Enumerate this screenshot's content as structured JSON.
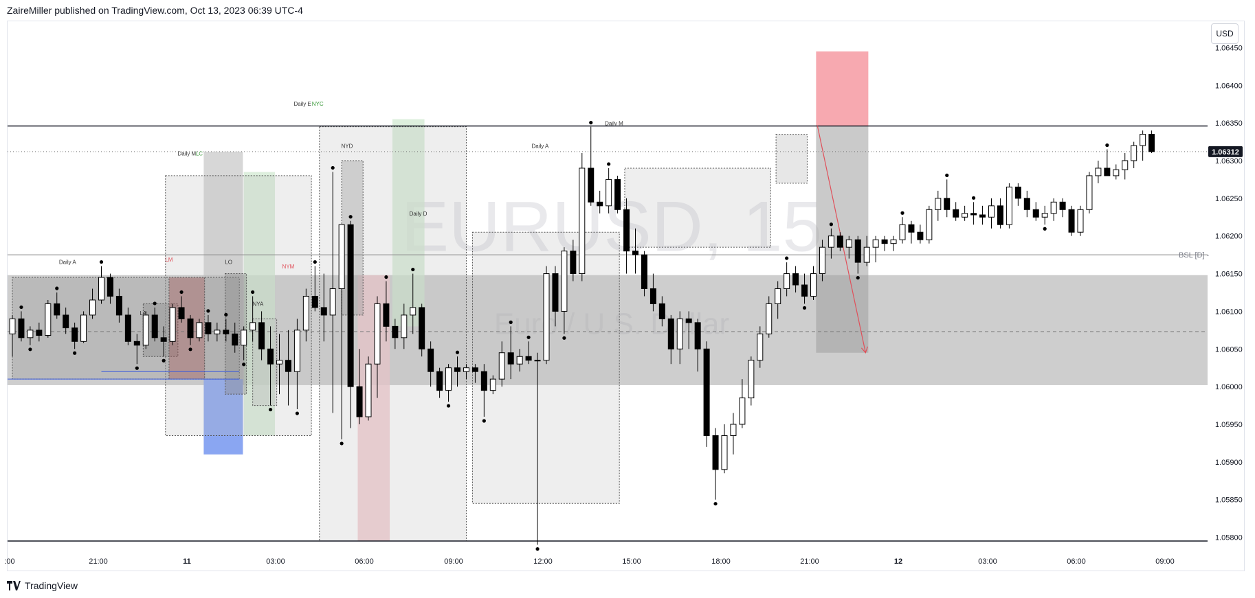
{
  "header": {
    "published": "ZaireMiller published on TradingView.com, Oct 13, 2023 06:39 UTC-4"
  },
  "footer": {
    "brand": "TradingView"
  },
  "price_scale": {
    "currency": "USD",
    "current_price": "1.06312"
  },
  "watermark": {
    "symbol": "EURUSD, 15",
    "description": "Euro / U.S. Dollar"
  },
  "colors": {
    "up": "#ffffff",
    "down": "#000000",
    "premium": "#f7a9b0",
    "discount": "#8aa6f2",
    "killzone_green": "#cfe8cf",
    "killzone_red": "#f1c7cc",
    "arrow": "#e0505a"
  },
  "chart_data": {
    "type": "candlestick",
    "symbol": "EURUSD",
    "timeframe": "15",
    "x_tick_labels": [
      ":00",
      "21:00",
      "11",
      "03:00",
      "06:00",
      "09:00",
      "12:00",
      "15:00",
      "18:00",
      "21:00",
      "12",
      "03:00",
      "06:00",
      "09:00"
    ],
    "y_tick_labels": [
      "1.06450",
      "1.06400",
      "1.06350",
      "1.06300",
      "1.06250",
      "1.06200",
      "1.06150",
      "1.06100",
      "1.06050",
      "1.06000",
      "1.05950",
      "1.05900",
      "1.05850",
      "1.05800"
    ],
    "ylim": [
      1.05775,
      1.06485
    ],
    "current_price": 1.06312,
    "levels": [
      {
        "price": 1.06346,
        "style": "solid",
        "label": ""
      },
      {
        "price": 1.06175,
        "style": "solid",
        "label": "BSL [D] -"
      },
      {
        "price": 1.05795,
        "style": "solid",
        "label": ""
      },
      {
        "price": 1.06312,
        "style": "dotted",
        "label": ""
      },
      {
        "price": 1.06073,
        "style": "dashed",
        "label": ""
      }
    ],
    "annotations": [
      {
        "text": "Daily A",
        "x": 6.2,
        "price": 1.06163
      },
      {
        "text": "LA",
        "x": 14.7,
        "price": 1.06095
      },
      {
        "text": "LM",
        "x": 17.6,
        "price": 1.06166
      },
      {
        "text": "Daily M",
        "x": 19.6,
        "price": 1.06307
      },
      {
        "text": "LC",
        "x": 21.0,
        "price": 1.06307
      },
      {
        "text": "LO",
        "x": 24.3,
        "price": 1.06163
      },
      {
        "text": "NYA",
        "x": 27.6,
        "price": 1.06107
      },
      {
        "text": "NYM",
        "x": 31.0,
        "price": 1.06157
      },
      {
        "text": "Daily E",
        "x": 32.6,
        "price": 1.06373
      },
      {
        "text": "NYC",
        "x": 34.3,
        "price": 1.06373
      },
      {
        "text": "NYD",
        "x": 37.6,
        "price": 1.06317
      },
      {
        "text": "Daily D",
        "x": 45.6,
        "price": 1.06227
      },
      {
        "text": "Daily A",
        "x": 59.3,
        "price": 1.06317
      },
      {
        "text": "Daily M",
        "x": 67.6,
        "price": 1.06347
      }
    ],
    "candles": [
      {
        "o": 1.0607,
        "h": 1.06095,
        "l": 1.0604,
        "c": 1.0609
      },
      {
        "o": 1.0609,
        "h": 1.061,
        "l": 1.0606,
        "c": 1.06065
      },
      {
        "o": 1.06065,
        "h": 1.0608,
        "l": 1.06055,
        "c": 1.06075
      },
      {
        "o": 1.06075,
        "h": 1.06085,
        "l": 1.0606,
        "c": 1.06068
      },
      {
        "o": 1.06068,
        "h": 1.06115,
        "l": 1.06065,
        "c": 1.0611
      },
      {
        "o": 1.0611,
        "h": 1.06125,
        "l": 1.0609,
        "c": 1.06095
      },
      {
        "o": 1.06095,
        "h": 1.06105,
        "l": 1.0607,
        "c": 1.06078
      },
      {
        "o": 1.06078,
        "h": 1.06085,
        "l": 1.0605,
        "c": 1.0606
      },
      {
        "o": 1.0606,
        "h": 1.061,
        "l": 1.06058,
        "c": 1.06095
      },
      {
        "o": 1.06095,
        "h": 1.0613,
        "l": 1.0609,
        "c": 1.06115
      },
      {
        "o": 1.06115,
        "h": 1.0616,
        "l": 1.0611,
        "c": 1.06145
      },
      {
        "o": 1.06145,
        "h": 1.0615,
        "l": 1.0611,
        "c": 1.0612
      },
      {
        "o": 1.0612,
        "h": 1.0613,
        "l": 1.06085,
        "c": 1.06095
      },
      {
        "o": 1.06095,
        "h": 1.06105,
        "l": 1.06055,
        "c": 1.0606
      },
      {
        "o": 1.0606,
        "h": 1.0607,
        "l": 1.0603,
        "c": 1.06055
      },
      {
        "o": 1.06055,
        "h": 1.061,
        "l": 1.0605,
        "c": 1.06095
      },
      {
        "o": 1.06095,
        "h": 1.06105,
        "l": 1.0606,
        "c": 1.06065
      },
      {
        "o": 1.06065,
        "h": 1.0608,
        "l": 1.0604,
        "c": 1.0606
      },
      {
        "o": 1.0606,
        "h": 1.0611,
        "l": 1.06055,
        "c": 1.06105
      },
      {
        "o": 1.06105,
        "h": 1.0612,
        "l": 1.06085,
        "c": 1.0609
      },
      {
        "o": 1.0609,
        "h": 1.06095,
        "l": 1.06055,
        "c": 1.06065
      },
      {
        "o": 1.06065,
        "h": 1.0609,
        "l": 1.0606,
        "c": 1.06085
      },
      {
        "o": 1.06085,
        "h": 1.06095,
        "l": 1.0606,
        "c": 1.0607
      },
      {
        "o": 1.0607,
        "h": 1.06085,
        "l": 1.0606,
        "c": 1.06075
      },
      {
        "o": 1.06075,
        "h": 1.0609,
        "l": 1.0606,
        "c": 1.0607
      },
      {
        "o": 1.0607,
        "h": 1.06085,
        "l": 1.06045,
        "c": 1.06055
      },
      {
        "o": 1.06055,
        "h": 1.0608,
        "l": 1.06035,
        "c": 1.06075
      },
      {
        "o": 1.06075,
        "h": 1.0612,
        "l": 1.0606,
        "c": 1.06085
      },
      {
        "o": 1.06085,
        "h": 1.061,
        "l": 1.06035,
        "c": 1.0605
      },
      {
        "o": 1.0605,
        "h": 1.0608,
        "l": 1.05975,
        "c": 1.0603
      },
      {
        "o": 1.0603,
        "h": 1.0607,
        "l": 1.0599,
        "c": 1.06035
      },
      {
        "o": 1.06035,
        "h": 1.06075,
        "l": 1.05975,
        "c": 1.0602
      },
      {
        "o": 1.0602,
        "h": 1.0609,
        "l": 1.0597,
        "c": 1.06075
      },
      {
        "o": 1.06075,
        "h": 1.0613,
        "l": 1.0606,
        "c": 1.0612
      },
      {
        "o": 1.0612,
        "h": 1.0616,
        "l": 1.061,
        "c": 1.06105
      },
      {
        "o": 1.06105,
        "h": 1.0615,
        "l": 1.0606,
        "c": 1.06095
      },
      {
        "o": 1.06095,
        "h": 1.06285,
        "l": 1.05965,
        "c": 1.0613
      },
      {
        "o": 1.0613,
        "h": 1.06215,
        "l": 1.0593,
        "c": 1.06215
      },
      {
        "o": 1.06215,
        "h": 1.0622,
        "l": 1.05945,
        "c": 1.06
      },
      {
        "o": 1.06,
        "h": 1.0605,
        "l": 1.0595,
        "c": 1.0596
      },
      {
        "o": 1.0596,
        "h": 1.0604,
        "l": 1.05955,
        "c": 1.0603
      },
      {
        "o": 1.0603,
        "h": 1.0612,
        "l": 1.05985,
        "c": 1.0611
      },
      {
        "o": 1.0611,
        "h": 1.0614,
        "l": 1.0606,
        "c": 1.0608
      },
      {
        "o": 1.0608,
        "h": 1.0609,
        "l": 1.0605,
        "c": 1.06065
      },
      {
        "o": 1.06065,
        "h": 1.0611,
        "l": 1.0605,
        "c": 1.06095
      },
      {
        "o": 1.06095,
        "h": 1.0615,
        "l": 1.0607,
        "c": 1.06105
      },
      {
        "o": 1.06105,
        "h": 1.0611,
        "l": 1.0604,
        "c": 1.0605
      },
      {
        "o": 1.0605,
        "h": 1.0606,
        "l": 1.06,
        "c": 1.0602
      },
      {
        "o": 1.0602,
        "h": 1.06025,
        "l": 1.05985,
        "c": 1.05995
      },
      {
        "o": 1.05995,
        "h": 1.0603,
        "l": 1.0598,
        "c": 1.06025
      },
      {
        "o": 1.06025,
        "h": 1.0604,
        "l": 1.06,
        "c": 1.0602
      },
      {
        "o": 1.0602,
        "h": 1.0603,
        "l": 1.0601,
        "c": 1.06025
      },
      {
        "o": 1.06025,
        "h": 1.0603,
        "l": 1.06005,
        "c": 1.0602
      },
      {
        "o": 1.0602,
        "h": 1.0603,
        "l": 1.0596,
        "c": 1.05995
      },
      {
        "o": 1.05995,
        "h": 1.06015,
        "l": 1.0599,
        "c": 1.0601
      },
      {
        "o": 1.0601,
        "h": 1.0606,
        "l": 1.06,
        "c": 1.06045
      },
      {
        "o": 1.06045,
        "h": 1.0608,
        "l": 1.0601,
        "c": 1.0603
      },
      {
        "o": 1.0603,
        "h": 1.0605,
        "l": 1.0602,
        "c": 1.0604
      },
      {
        "o": 1.0604,
        "h": 1.0606,
        "l": 1.0603,
        "c": 1.06035
      },
      {
        "o": 1.06035,
        "h": 1.06045,
        "l": 1.0579,
        "c": 1.06035
      },
      {
        "o": 1.06035,
        "h": 1.0616,
        "l": 1.0603,
        "c": 1.0615
      },
      {
        "o": 1.0615,
        "h": 1.0616,
        "l": 1.0608,
        "c": 1.061
      },
      {
        "o": 1.061,
        "h": 1.06185,
        "l": 1.0607,
        "c": 1.0618
      },
      {
        "o": 1.0618,
        "h": 1.06195,
        "l": 1.0614,
        "c": 1.0615
      },
      {
        "o": 1.0615,
        "h": 1.0631,
        "l": 1.0614,
        "c": 1.0629
      },
      {
        "o": 1.0629,
        "h": 1.06345,
        "l": 1.0624,
        "c": 1.06245
      },
      {
        "o": 1.06245,
        "h": 1.0626,
        "l": 1.0623,
        "c": 1.0624
      },
      {
        "o": 1.0624,
        "h": 1.0629,
        "l": 1.0623,
        "c": 1.06275
      },
      {
        "o": 1.06275,
        "h": 1.0628,
        "l": 1.0623,
        "c": 1.06235
      },
      {
        "o": 1.06235,
        "h": 1.0625,
        "l": 1.0615,
        "c": 1.0618
      },
      {
        "o": 1.0618,
        "h": 1.0621,
        "l": 1.0615,
        "c": 1.06175
      },
      {
        "o": 1.06175,
        "h": 1.0618,
        "l": 1.0612,
        "c": 1.0613
      },
      {
        "o": 1.0613,
        "h": 1.0615,
        "l": 1.061,
        "c": 1.0611
      },
      {
        "o": 1.0611,
        "h": 1.0612,
        "l": 1.0608,
        "c": 1.0609
      },
      {
        "o": 1.0609,
        "h": 1.06095,
        "l": 1.0603,
        "c": 1.0605
      },
      {
        "o": 1.0605,
        "h": 1.061,
        "l": 1.0603,
        "c": 1.0609
      },
      {
        "o": 1.0609,
        "h": 1.061,
        "l": 1.0605,
        "c": 1.06085
      },
      {
        "o": 1.06085,
        "h": 1.0609,
        "l": 1.0602,
        "c": 1.0605
      },
      {
        "o": 1.0605,
        "h": 1.0606,
        "l": 1.0592,
        "c": 1.05935
      },
      {
        "o": 1.05935,
        "h": 1.05945,
        "l": 1.0585,
        "c": 1.0589
      },
      {
        "o": 1.0589,
        "h": 1.0595,
        "l": 1.05885,
        "c": 1.05935
      },
      {
        "o": 1.05935,
        "h": 1.05965,
        "l": 1.0591,
        "c": 1.0595
      },
      {
        "o": 1.0595,
        "h": 1.0601,
        "l": 1.05945,
        "c": 1.05985
      },
      {
        "o": 1.05985,
        "h": 1.0604,
        "l": 1.05975,
        "c": 1.06035
      },
      {
        "o": 1.06035,
        "h": 1.0608,
        "l": 1.06025,
        "c": 1.0607
      },
      {
        "o": 1.0607,
        "h": 1.0612,
        "l": 1.06065,
        "c": 1.0611
      },
      {
        "o": 1.0611,
        "h": 1.0614,
        "l": 1.0609,
        "c": 1.0613
      },
      {
        "o": 1.0613,
        "h": 1.06165,
        "l": 1.0612,
        "c": 1.0615
      },
      {
        "o": 1.0615,
        "h": 1.0616,
        "l": 1.06125,
        "c": 1.06135
      },
      {
        "o": 1.06135,
        "h": 1.0615,
        "l": 1.0611,
        "c": 1.0612
      },
      {
        "o": 1.0612,
        "h": 1.0616,
        "l": 1.06115,
        "c": 1.0615
      },
      {
        "o": 1.0615,
        "h": 1.06195,
        "l": 1.0614,
        "c": 1.06185
      },
      {
        "o": 1.06185,
        "h": 1.0621,
        "l": 1.0617,
        "c": 1.062
      },
      {
        "o": 1.062,
        "h": 1.06205,
        "l": 1.0618,
        "c": 1.06185
      },
      {
        "o": 1.06185,
        "h": 1.062,
        "l": 1.0617,
        "c": 1.06195
      },
      {
        "o": 1.06195,
        "h": 1.062,
        "l": 1.0615,
        "c": 1.06165
      },
      {
        "o": 1.06165,
        "h": 1.062,
        "l": 1.0616,
        "c": 1.06185
      },
      {
        "o": 1.06185,
        "h": 1.062,
        "l": 1.06165,
        "c": 1.06195
      },
      {
        "o": 1.06195,
        "h": 1.062,
        "l": 1.0618,
        "c": 1.0619
      },
      {
        "o": 1.0619,
        "h": 1.062,
        "l": 1.0618,
        "c": 1.06195
      },
      {
        "o": 1.06195,
        "h": 1.06225,
        "l": 1.0619,
        "c": 1.06215
      },
      {
        "o": 1.06215,
        "h": 1.0622,
        "l": 1.0619,
        "c": 1.06205
      },
      {
        "o": 1.06205,
        "h": 1.06215,
        "l": 1.0619,
        "c": 1.06195
      },
      {
        "o": 1.06195,
        "h": 1.0624,
        "l": 1.0619,
        "c": 1.06235
      },
      {
        "o": 1.06235,
        "h": 1.0626,
        "l": 1.0622,
        "c": 1.0625
      },
      {
        "o": 1.0625,
        "h": 1.06275,
        "l": 1.06225,
        "c": 1.06235
      },
      {
        "o": 1.06235,
        "h": 1.06245,
        "l": 1.0622,
        "c": 1.06225
      },
      {
        "o": 1.06225,
        "h": 1.0624,
        "l": 1.0622,
        "c": 1.0623
      },
      {
        "o": 1.0623,
        "h": 1.06245,
        "l": 1.06215,
        "c": 1.06228
      },
      {
        "o": 1.06228,
        "h": 1.0624,
        "l": 1.06215,
        "c": 1.06225
      },
      {
        "o": 1.06225,
        "h": 1.0625,
        "l": 1.0621,
        "c": 1.0624
      },
      {
        "o": 1.0624,
        "h": 1.0625,
        "l": 1.0621,
        "c": 1.06215
      },
      {
        "o": 1.06215,
        "h": 1.0627,
        "l": 1.0621,
        "c": 1.06265
      },
      {
        "o": 1.06265,
        "h": 1.0627,
        "l": 1.0624,
        "c": 1.0625
      },
      {
        "o": 1.0625,
        "h": 1.0626,
        "l": 1.06225,
        "c": 1.06235
      },
      {
        "o": 1.06235,
        "h": 1.06245,
        "l": 1.0622,
        "c": 1.06225
      },
      {
        "o": 1.06225,
        "h": 1.0624,
        "l": 1.06215,
        "c": 1.0623
      },
      {
        "o": 1.0623,
        "h": 1.0625,
        "l": 1.0622,
        "c": 1.06245
      },
      {
        "o": 1.06245,
        "h": 1.0625,
        "l": 1.06225,
        "c": 1.06235
      },
      {
        "o": 1.06235,
        "h": 1.0624,
        "l": 1.062,
        "c": 1.06205
      },
      {
        "o": 1.06205,
        "h": 1.0624,
        "l": 1.062,
        "c": 1.06235
      },
      {
        "o": 1.06235,
        "h": 1.06285,
        "l": 1.0623,
        "c": 1.0628
      },
      {
        "o": 1.0628,
        "h": 1.063,
        "l": 1.0627,
        "c": 1.0629
      },
      {
        "o": 1.0629,
        "h": 1.06315,
        "l": 1.0628,
        "c": 1.0628
      },
      {
        "o": 1.0628,
        "h": 1.06295,
        "l": 1.06275,
        "c": 1.06288
      },
      {
        "o": 1.06288,
        "h": 1.0631,
        "l": 1.06275,
        "c": 1.063
      },
      {
        "o": 1.063,
        "h": 1.06325,
        "l": 1.0629,
        "c": 1.0632
      },
      {
        "o": 1.0632,
        "h": 1.0634,
        "l": 1.063,
        "c": 1.06335
      },
      {
        "o": 1.06335,
        "h": 1.0634,
        "l": 1.0631,
        "c": 1.06312
      }
    ],
    "sessions": [
      {
        "from": 0,
        "to": 25.5,
        "hi": 1.06145,
        "lo": 1.0601,
        "label": "Daily A",
        "fill": "#9e9e9e"
      },
      {
        "from": 14.7,
        "to": 18.6,
        "hi": 1.0611,
        "lo": 1.0604,
        "label": "LA",
        "fill": "#8c8c8c"
      },
      {
        "from": 17.6,
        "to": 21.6,
        "hi": 1.06145,
        "lo": 1.0601,
        "label": "LM",
        "fill": "#a55a5a"
      },
      {
        "from": 23.9,
        "to": 26.3,
        "hi": 1.0615,
        "lo": 1.0599,
        "label": "LO",
        "fill": "#8c8c8c"
      },
      {
        "from": 27.0,
        "to": 29.7,
        "hi": 1.0609,
        "lo": 1.05975,
        "label": "NYA",
        "fill": "#bdbdbd"
      },
      {
        "from": 37.0,
        "to": 39.4,
        "hi": 1.063,
        "lo": 1.06095,
        "label": "NYD",
        "fill": "#9e9e9e"
      }
    ],
    "bias_arrow": {
      "from_price": 1.06346,
      "to_price": 1.06045
    },
    "trade_zone": {
      "stop_top": 1.06445,
      "entry": 1.06346,
      "target": 1.06045
    }
  }
}
